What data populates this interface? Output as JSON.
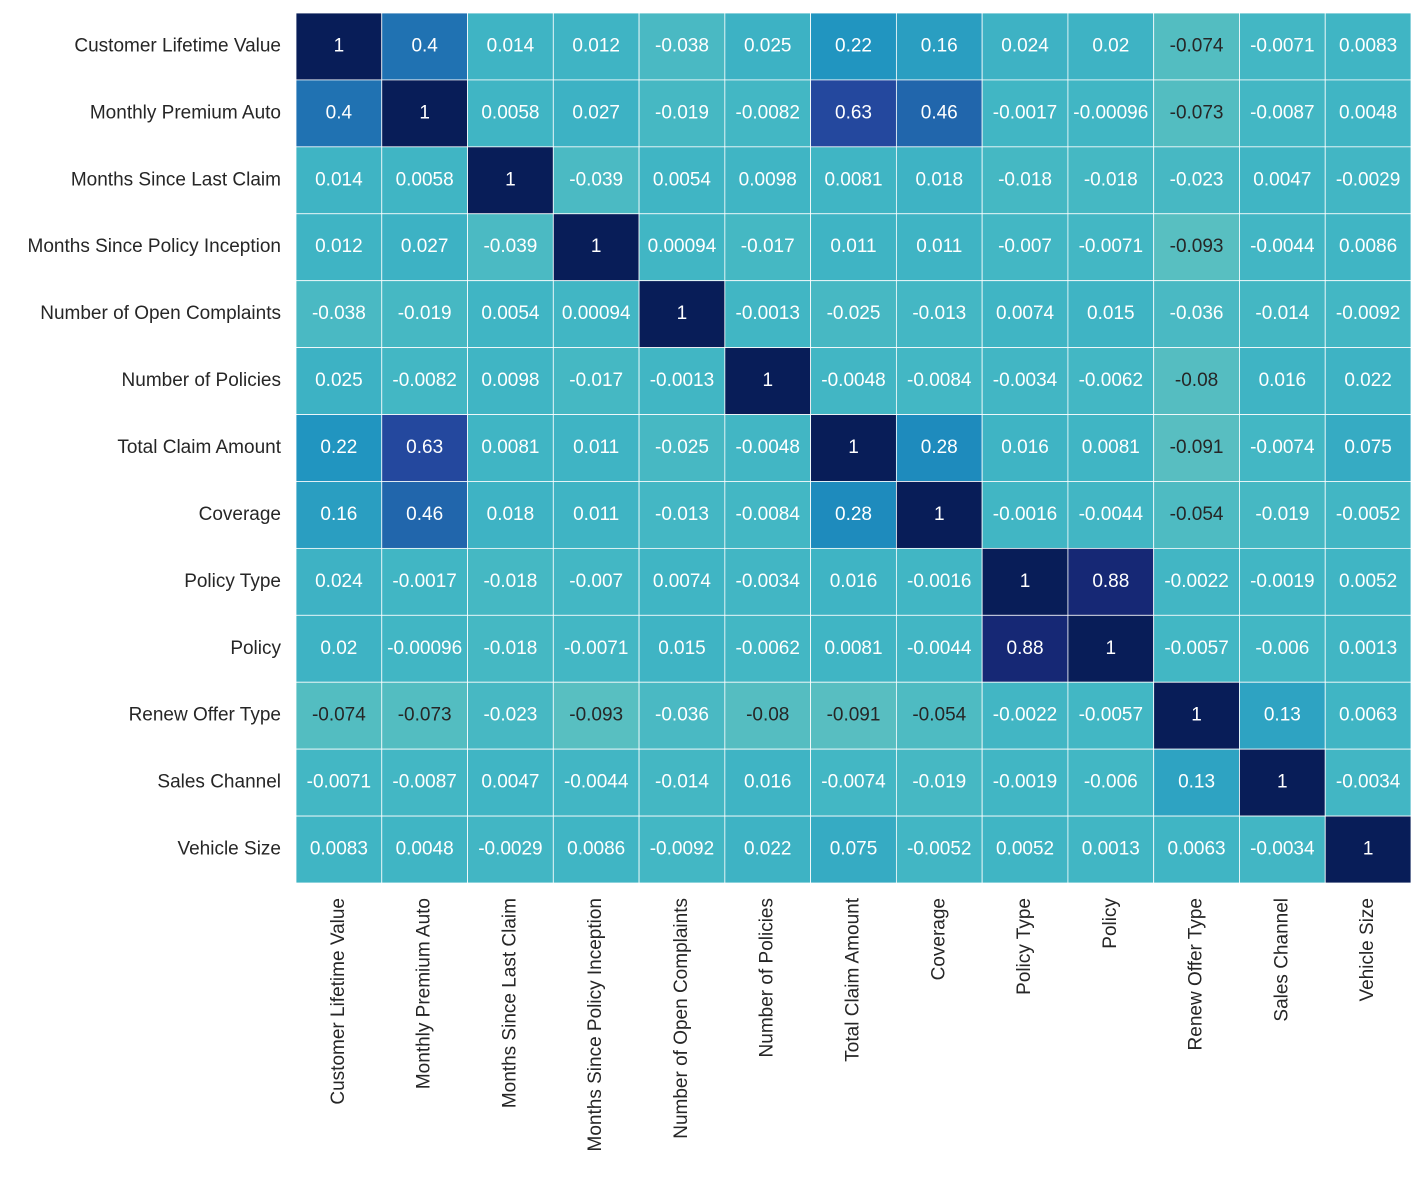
{
  "chart_data": {
    "type": "heatmap",
    "colormap": "YlGnBu",
    "zlim": [
      -1,
      1
    ],
    "categories": [
      "Customer Lifetime Value",
      "Monthly Premium Auto",
      "Months Since Last Claim",
      "Months Since Policy Inception",
      "Number of Open Complaints",
      "Number of Policies",
      "Total Claim Amount",
      "Coverage",
      "Policy Type",
      "Policy",
      "Renew Offer Type",
      "Sales Channel",
      "Vehicle Size"
    ],
    "values": [
      [
        1,
        0.4,
        0.014,
        0.012,
        -0.038,
        0.025,
        0.22,
        0.16,
        0.024,
        0.02,
        -0.074,
        -0.0071,
        0.0083
      ],
      [
        0.4,
        1,
        0.0058,
        0.027,
        -0.019,
        -0.0082,
        0.63,
        0.46,
        -0.0017,
        -0.00096,
        -0.073,
        -0.0087,
        0.0048
      ],
      [
        0.014,
        0.0058,
        1,
        -0.039,
        0.0054,
        0.0098,
        0.0081,
        0.018,
        -0.018,
        -0.018,
        -0.023,
        0.0047,
        -0.0029
      ],
      [
        0.012,
        0.027,
        -0.039,
        1,
        0.00094,
        -0.017,
        0.011,
        0.011,
        -0.007,
        -0.0071,
        -0.093,
        -0.0044,
        0.0086
      ],
      [
        -0.038,
        -0.019,
        0.0054,
        0.00094,
        1,
        -0.0013,
        -0.025,
        -0.013,
        0.0074,
        0.015,
        -0.036,
        -0.014,
        -0.0092
      ],
      [
        0.025,
        -0.0082,
        0.0098,
        -0.017,
        -0.0013,
        1,
        -0.0048,
        -0.0084,
        -0.0034,
        -0.0062,
        -0.08,
        0.016,
        0.022
      ],
      [
        0.22,
        0.63,
        0.0081,
        0.011,
        -0.025,
        -0.0048,
        1,
        0.28,
        0.016,
        0.0081,
        -0.091,
        -0.0074,
        0.075
      ],
      [
        0.16,
        0.46,
        0.018,
        0.011,
        -0.013,
        -0.0084,
        0.28,
        1,
        -0.0016,
        -0.0044,
        -0.054,
        -0.019,
        -0.0052
      ],
      [
        0.024,
        -0.0017,
        -0.018,
        -0.007,
        0.0074,
        -0.0034,
        0.016,
        -0.0016,
        1,
        0.88,
        -0.0022,
        -0.0019,
        0.0052
      ],
      [
        0.02,
        -0.00096,
        -0.018,
        -0.0071,
        0.015,
        -0.0062,
        0.0081,
        -0.0044,
        0.88,
        1,
        -0.0057,
        -0.006,
        0.0013
      ],
      [
        -0.074,
        -0.073,
        -0.023,
        -0.093,
        -0.036,
        -0.08,
        -0.091,
        -0.054,
        -0.0022,
        -0.0057,
        1,
        0.13,
        0.0063
      ],
      [
        -0.0071,
        -0.0087,
        0.0047,
        -0.0044,
        -0.014,
        0.016,
        -0.0074,
        -0.019,
        -0.0019,
        -0.006,
        0.13,
        1,
        -0.0034
      ],
      [
        0.0083,
        0.0048,
        -0.0029,
        0.0086,
        -0.0092,
        0.022,
        0.075,
        -0.0052,
        0.0052,
        0.0013,
        0.0063,
        -0.0034,
        1
      ]
    ]
  }
}
